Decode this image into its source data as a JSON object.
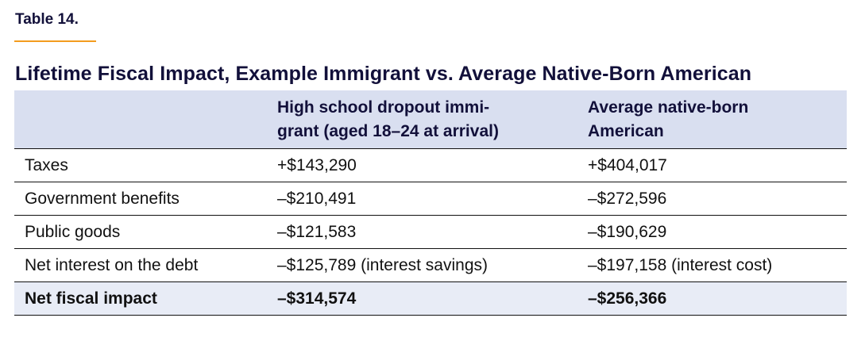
{
  "label": "Table 14.",
  "title": "Lifetime Fiscal Impact, Example Immigrant vs. Average Native-Born American",
  "columns": [
    "",
    "High school dropout immi-\ngrant (aged 18–24 at arrival)",
    "Average native-born\nAmerican"
  ],
  "column_lines": {
    "col2": [
      "High school dropout immi-",
      "grant (aged 18–24 at arrival)"
    ],
    "col3": [
      "Average native-born",
      "American"
    ]
  },
  "rows": [
    {
      "label": "Taxes",
      "immigrant": "+$143,290",
      "native": "+$404,017"
    },
    {
      "label": "Government benefits",
      "immigrant": "–$210,491",
      "native": "–$272,596"
    },
    {
      "label": "Public goods",
      "immigrant": "–$121,583",
      "native": "–$190,629"
    },
    {
      "label": "Net interest on the debt",
      "immigrant": "–$125,789 (interest savings)",
      "native": "–$197,158 (interest cost)"
    },
    {
      "label": "Net fiscal impact",
      "immigrant": "–$314,574",
      "native": "–$256,366"
    }
  ],
  "colors": {
    "accent": "#f39c1e",
    "header_bg": "#d9dff0",
    "total_bg": "#e8ecf6",
    "title": "#12103a"
  }
}
